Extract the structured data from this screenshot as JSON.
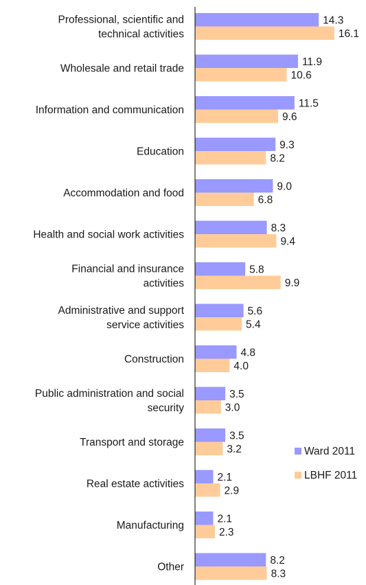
{
  "chart_data": {
    "type": "bar",
    "orientation": "horizontal",
    "categories": [
      "Professional, scientific and technical activities",
      "Wholesale and retail trade",
      "Information and communication",
      "Education",
      "Accommodation and food",
      "Health and social work activities",
      "Financial and insurance activities",
      "Administrative and support service activities",
      "Construction",
      "Public administration and social security",
      "Transport and storage",
      "Real estate activities",
      "Manufacturing",
      "Other"
    ],
    "category_lines": [
      [
        "Professional, scientific and",
        "technical activities"
      ],
      [
        "Wholesale and retail trade"
      ],
      [
        "Information and communication"
      ],
      [
        "Education"
      ],
      [
        "Accommodation and food"
      ],
      [
        "Health and social work activities"
      ],
      [
        "Financial and insurance",
        "activities"
      ],
      [
        "Administrative and support",
        "service activities"
      ],
      [
        "Construction"
      ],
      [
        "Public administration and social",
        "security"
      ],
      [
        "Transport and storage"
      ],
      [
        "Real estate activities"
      ],
      [
        "Manufacturing"
      ],
      [
        "Other"
      ]
    ],
    "series": [
      {
        "name": "Ward 2011",
        "color": "#9999ff",
        "values": [
          14.3,
          11.9,
          11.5,
          9.3,
          9.0,
          8.3,
          5.8,
          5.6,
          4.8,
          3.5,
          3.5,
          2.1,
          2.1,
          8.2
        ],
        "labels": [
          "14.3",
          "11.9",
          "11.5",
          "9.3",
          "9.0",
          "8.3",
          "5.8",
          "5.6",
          "4.8",
          "3.5",
          "3.5",
          "2.1",
          "2.1",
          "8.2"
        ]
      },
      {
        "name": "LBHF 2011",
        "color": "#ffcc99",
        "values": [
          16.1,
          10.6,
          9.6,
          8.2,
          6.8,
          9.4,
          9.9,
          5.4,
          4.0,
          3.0,
          3.2,
          2.9,
          2.3,
          8.3
        ],
        "labels": [
          "16.1",
          "10.6",
          "9.6",
          "8.2",
          "6.8",
          "9.4",
          "9.9",
          "5.4",
          "4.0",
          "3.0",
          "3.2",
          "2.9",
          "2.3",
          "8.3"
        ]
      }
    ],
    "xlim": [
      0,
      20
    ],
    "legend_position": "right",
    "grid": false
  }
}
